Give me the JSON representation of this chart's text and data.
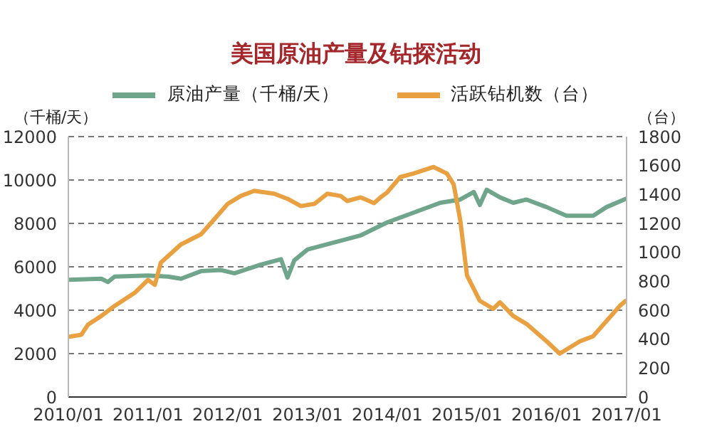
{
  "chart_data": {
    "type": "line",
    "title": "美国原油产量及钻探活动",
    "ylabel": "（千桶/天）",
    "y2label": "（台）",
    "xlim": [
      "2010-01",
      "2017-01"
    ],
    "xticks": [
      {
        "value": "2010-01",
        "label": "2010/01"
      },
      {
        "value": "2011-01",
        "label": "2011/01"
      },
      {
        "value": "2012-01",
        "label": "2012/01"
      },
      {
        "value": "2013-01",
        "label": "2013/01"
      },
      {
        "value": "2014-01",
        "label": "2014/01"
      },
      {
        "value": "2015-01",
        "label": "2015/01"
      },
      {
        "value": "2016-01",
        "label": "2016/01"
      },
      {
        "value": "2017-01",
        "label": "2017/01"
      }
    ],
    "ylim": [
      0,
      12000
    ],
    "yticks": [
      0,
      2000,
      4000,
      6000,
      8000,
      10000,
      12000
    ],
    "y2lim": [
      0,
      1800
    ],
    "y2ticks": [
      0,
      200,
      400,
      600,
      800,
      1000,
      1200,
      1400,
      1600,
      1800
    ],
    "grid": "y",
    "legend": "top",
    "line_style": "solid",
    "marker": "none",
    "series": [
      {
        "name": "原油产量（千桶/天）",
        "color": "#6fa58a",
        "x": [
          "2010-01",
          "2010-06",
          "2010-07",
          "2010-08",
          "2011-01",
          "2011-04",
          "2011-06",
          "2011-09",
          "2011-12",
          "2012-02",
          "2012-06",
          "2012-09",
          "2012-10",
          "2012-11",
          "2013-01",
          "2013-06",
          "2013-09",
          "2014-01",
          "2014-09",
          "2014-12",
          "2015-02",
          "2015-03",
          "2015-04",
          "2015-06",
          "2015-08",
          "2015-10",
          "2016-01",
          "2016-04",
          "2016-08",
          "2016-10",
          "2017-01"
        ],
        "values": [
          5400,
          5450,
          5300,
          5550,
          5600,
          5550,
          5450,
          5800,
          5850,
          5700,
          6100,
          6350,
          5500,
          6300,
          6800,
          7200,
          7450,
          8050,
          8950,
          9100,
          9450,
          8850,
          9550,
          9200,
          8950,
          9100,
          8750,
          8350,
          8350,
          8750,
          9150
        ]
      },
      {
        "name": "活跃钻机数（台）",
        "color": "#e8a040",
        "axis": "y2",
        "x": [
          "2010-01",
          "2010-03",
          "2010-04",
          "2010-06",
          "2010-08",
          "2010-11",
          "2011-01",
          "2011-02",
          "2011-03",
          "2011-06",
          "2011-09",
          "2011-11",
          "2012-01",
          "2012-03",
          "2012-05",
          "2012-08",
          "2012-10",
          "2012-12",
          "2013-02",
          "2013-04",
          "2013-06",
          "2013-07",
          "2013-09",
          "2013-11",
          "2013-12",
          "2014-01",
          "2014-03",
          "2014-05",
          "2014-08",
          "2014-10",
          "2014-11",
          "2014-12",
          "2015-01",
          "2015-03",
          "2015-05",
          "2015-06",
          "2015-08",
          "2015-10",
          "2016-01",
          "2016-03",
          "2016-06",
          "2016-08",
          "2016-10",
          "2016-12",
          "2017-01"
        ],
        "values": [
          415,
          430,
          500,
          560,
          630,
          720,
          810,
          775,
          930,
          1055,
          1125,
          1230,
          1335,
          1390,
          1425,
          1405,
          1370,
          1320,
          1335,
          1405,
          1390,
          1355,
          1380,
          1340,
          1380,
          1415,
          1520,
          1545,
          1590,
          1545,
          1470,
          1225,
          840,
          665,
          610,
          655,
          560,
          505,
          385,
          300,
          385,
          420,
          525,
          630,
          670
        ]
      }
    ]
  }
}
